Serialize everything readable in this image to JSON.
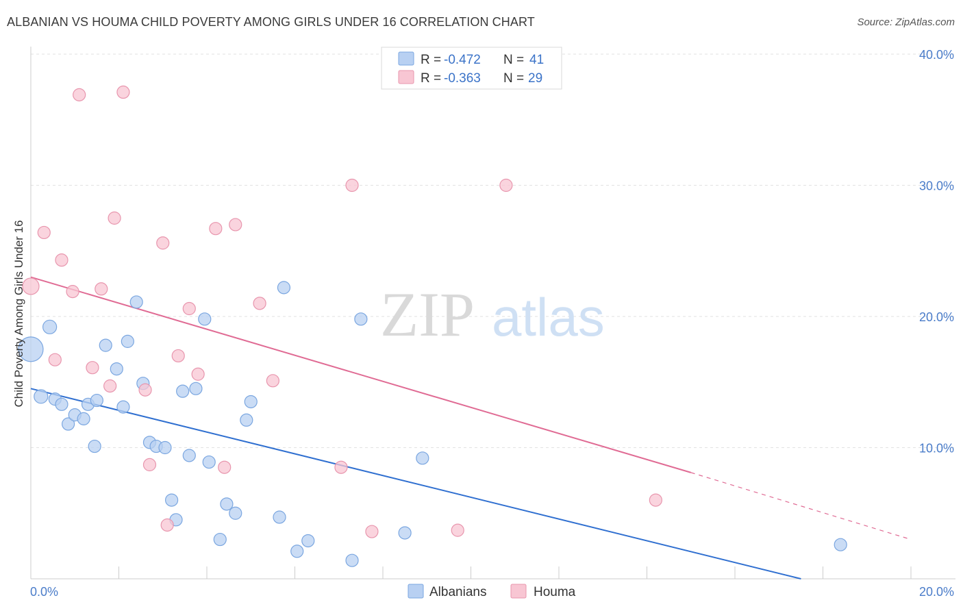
{
  "title": "ALBANIAN VS HOUMA CHILD POVERTY AMONG GIRLS UNDER 16 CORRELATION CHART",
  "source": "Source: ZipAtlas.com",
  "watermark": {
    "zip": "ZIP",
    "atlas": "atlas"
  },
  "colors": {
    "albanian_fill": "#b8d0f2",
    "albanian_stroke": "#7aa6e0",
    "albanian_line": "#2f6fd0",
    "houma_fill": "#f8c6d3",
    "houma_stroke": "#e895ad",
    "houma_line": "#e06b94",
    "grid": "#e2e2e2",
    "tick_label": "#4a7cc9"
  },
  "legend": {
    "r_label": "R =",
    "n_label": "N =",
    "albanian_r": "-0.472",
    "albanian_n": "41",
    "houma_r": "-0.363",
    "houma_n": "29"
  },
  "chart_data": {
    "type": "scatter",
    "ylabel": "Child Poverty Among Girls Under 16",
    "xlabel": "",
    "xlim": [
      0,
      20
    ],
    "ylim": [
      0,
      40
    ],
    "x_tick_labels": [
      {
        "v": 0,
        "label": "0.0%"
      },
      {
        "v": 20,
        "label": "20.0%"
      }
    ],
    "y_tick_labels": [
      {
        "v": 10,
        "label": "10.0%"
      },
      {
        "v": 20,
        "label": "20.0%"
      },
      {
        "v": 30,
        "label": "30.0%"
      },
      {
        "v": 40,
        "label": "40.0%"
      }
    ],
    "grid": true,
    "legend_position": "top-center",
    "series": [
      {
        "name": "Albanians",
        "points": [
          [
            0.0,
            17.5,
            18
          ],
          [
            0.43,
            19.2,
            10
          ],
          [
            0.23,
            13.9,
            10
          ],
          [
            0.55,
            13.7,
            9
          ],
          [
            0.7,
            13.3,
            9
          ],
          [
            0.85,
            11.8,
            9
          ],
          [
            1.0,
            12.5,
            9
          ],
          [
            1.2,
            12.2,
            9
          ],
          [
            1.3,
            13.3,
            9
          ],
          [
            1.5,
            13.6,
            9
          ],
          [
            1.45,
            10.1,
            9
          ],
          [
            1.7,
            17.8,
            9
          ],
          [
            1.95,
            16.0,
            9
          ],
          [
            2.1,
            13.1,
            9
          ],
          [
            2.2,
            18.1,
            9
          ],
          [
            2.4,
            21.1,
            9
          ],
          [
            2.55,
            14.9,
            9
          ],
          [
            2.7,
            10.4,
            9
          ],
          [
            2.85,
            10.1,
            9
          ],
          [
            3.05,
            10.0,
            9
          ],
          [
            3.2,
            6.0,
            9
          ],
          [
            3.3,
            4.5,
            9
          ],
          [
            3.45,
            14.3,
            9
          ],
          [
            3.6,
            9.4,
            9
          ],
          [
            3.75,
            14.5,
            9
          ],
          [
            3.95,
            19.8,
            9
          ],
          [
            4.05,
            8.9,
            9
          ],
          [
            4.3,
            3.0,
            9
          ],
          [
            4.45,
            5.7,
            9
          ],
          [
            4.65,
            5.0,
            9
          ],
          [
            4.9,
            12.1,
            9
          ],
          [
            5.0,
            13.5,
            9
          ],
          [
            5.65,
            4.7,
            9
          ],
          [
            5.75,
            22.2,
            9
          ],
          [
            6.05,
            2.1,
            9
          ],
          [
            6.3,
            2.9,
            9
          ],
          [
            7.3,
            1.4,
            9
          ],
          [
            7.5,
            19.8,
            9
          ],
          [
            8.5,
            3.5,
            9
          ],
          [
            8.9,
            9.2,
            9
          ],
          [
            18.4,
            2.6,
            9
          ]
        ]
      },
      {
        "name": "Houma",
        "points": [
          [
            0.0,
            22.3,
            12
          ],
          [
            0.3,
            26.4,
            9
          ],
          [
            0.55,
            16.7,
            9
          ],
          [
            0.7,
            24.3,
            9
          ],
          [
            0.95,
            21.9,
            9
          ],
          [
            1.1,
            36.9,
            9
          ],
          [
            1.4,
            16.1,
            9
          ],
          [
            1.6,
            22.1,
            9
          ],
          [
            1.8,
            14.7,
            9
          ],
          [
            1.9,
            27.5,
            9
          ],
          [
            2.1,
            37.1,
            9
          ],
          [
            2.6,
            14.4,
            9
          ],
          [
            2.7,
            8.7,
            9
          ],
          [
            3.0,
            25.6,
            9
          ],
          [
            3.1,
            4.1,
            9
          ],
          [
            3.35,
            17.0,
            9
          ],
          [
            3.6,
            20.6,
            9
          ],
          [
            3.8,
            15.6,
            9
          ],
          [
            4.2,
            26.7,
            9
          ],
          [
            4.4,
            8.5,
            9
          ],
          [
            4.65,
            27.0,
            9
          ],
          [
            5.2,
            21.0,
            9
          ],
          [
            5.5,
            15.1,
            9
          ],
          [
            7.05,
            8.5,
            9
          ],
          [
            7.3,
            30.0,
            9
          ],
          [
            7.75,
            3.6,
            9
          ],
          [
            9.7,
            3.7,
            9
          ],
          [
            10.8,
            30.0,
            9
          ],
          [
            14.2,
            6.0,
            9
          ]
        ]
      }
    ],
    "trend_lines": [
      {
        "name": "Albanians",
        "x0": 0,
        "y0": 14.5,
        "x1": 17.5,
        "y1": 0,
        "dash_from": null,
        "dash_to": null
      },
      {
        "name": "Houma",
        "x0": 0,
        "y0": 23.0,
        "x1": 15.0,
        "y1": 8.1,
        "dash_from": 15.0,
        "dash_to": 20.0,
        "dash_end_y": 3.0
      }
    ]
  }
}
